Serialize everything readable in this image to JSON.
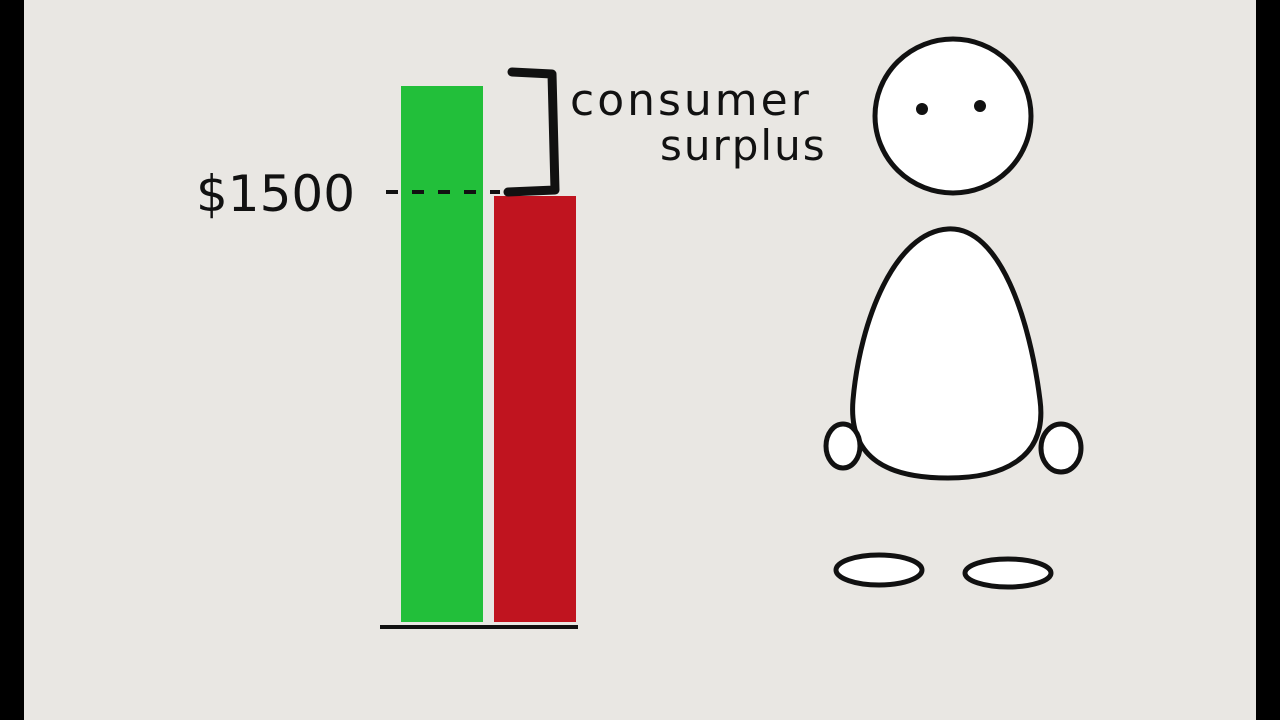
{
  "price_label": "$1500",
  "annotation": {
    "line1": "consumer",
    "line2": "surplus"
  },
  "colors": {
    "green_bar": "#22bf3a",
    "red_bar": "#c0141f",
    "paper": "#e9e7e3",
    "ink": "#111111"
  },
  "bars": [
    {
      "color": "green",
      "role": "willingness-to-pay"
    },
    {
      "color": "red",
      "role": "price",
      "value": 1500
    }
  ]
}
